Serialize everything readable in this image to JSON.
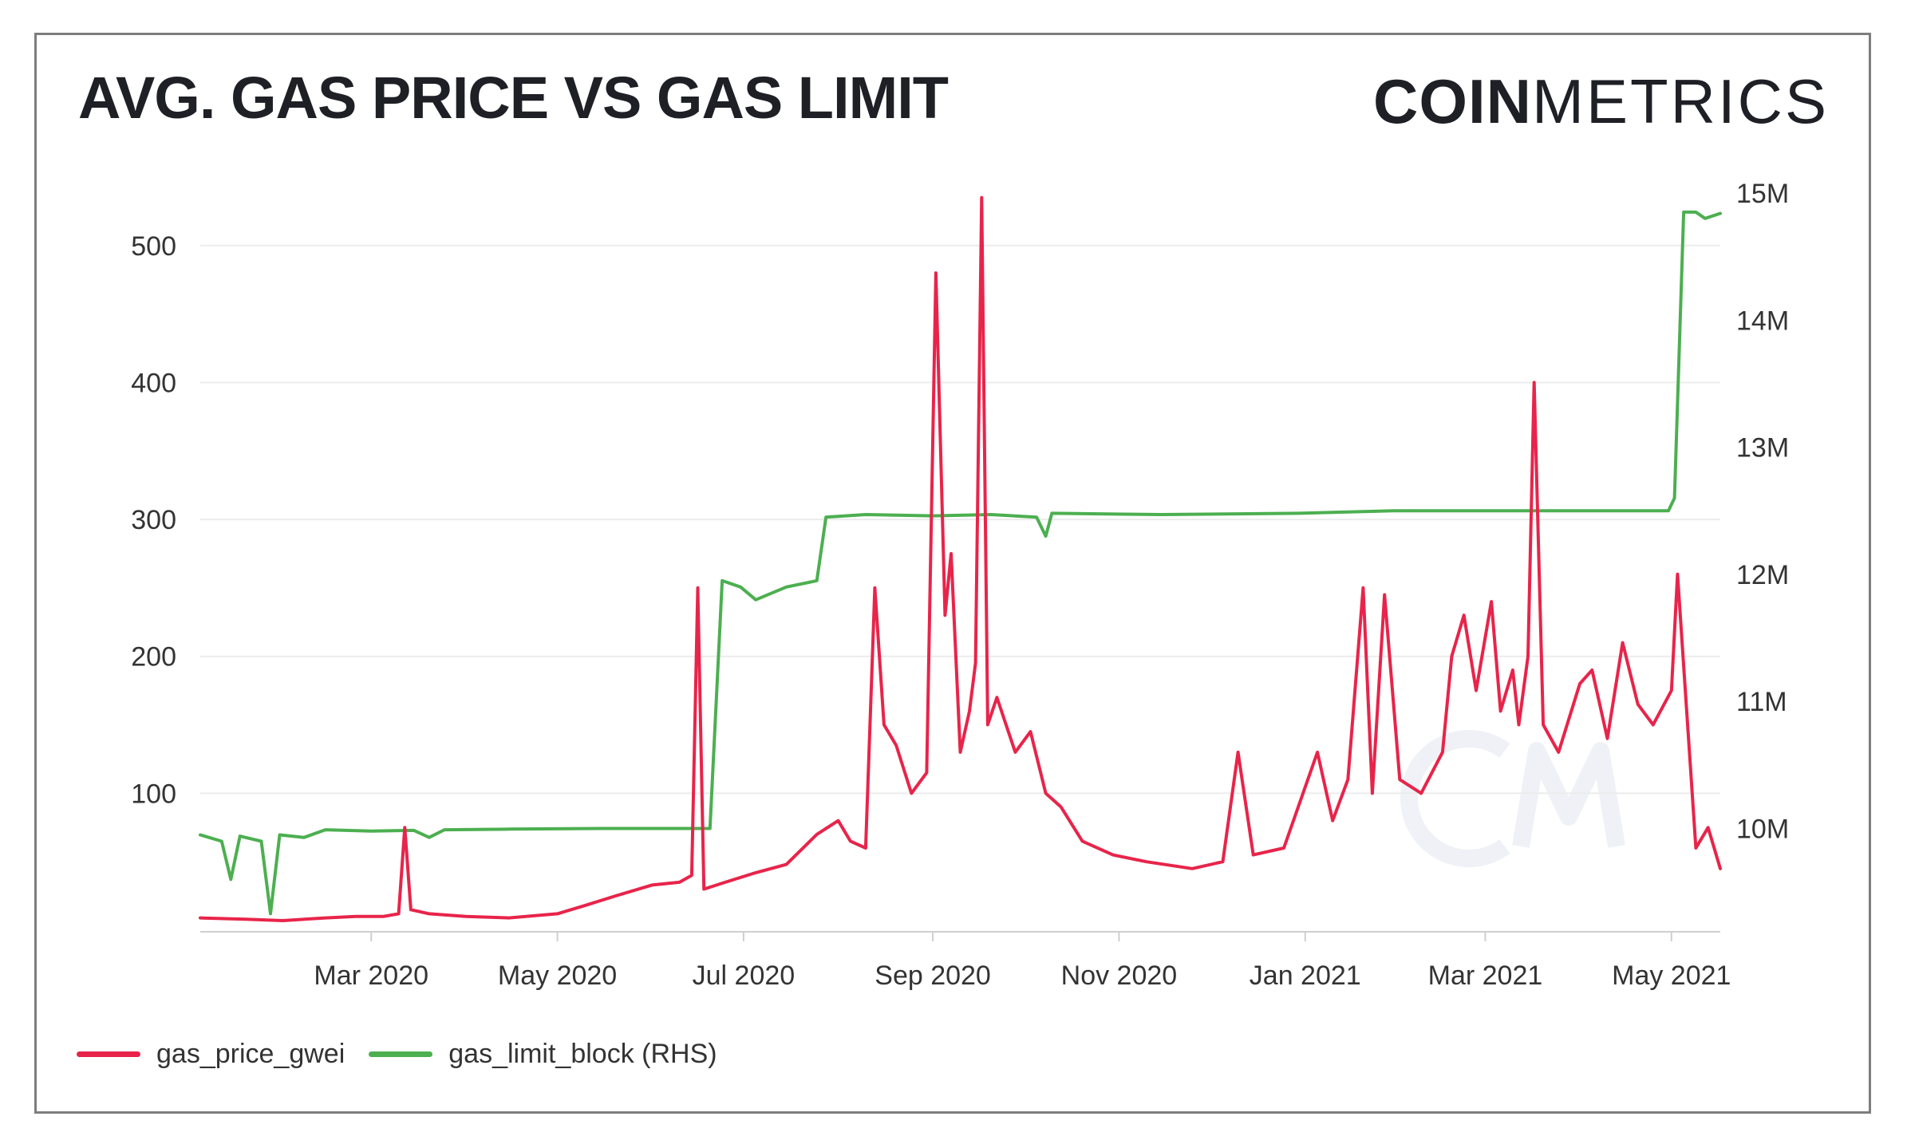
{
  "header": {
    "title": "AVG. GAS PRICE VS GAS LIMIT",
    "logo_bold": "COIN",
    "logo_thin": "METRICS"
  },
  "legend": {
    "items": [
      {
        "label": "gas_price_gwei",
        "color": "#e8244a"
      },
      {
        "label": "gas_limit_block (RHS)",
        "color": "#4caf50"
      }
    ]
  },
  "chart_data": {
    "type": "line",
    "title": "AVG. GAS PRICE VS GAS LIMIT",
    "xlabel": "",
    "ylabel": "",
    "grid": true,
    "legend_position": "bottom-left",
    "x_ticks": [
      "Mar 2020",
      "May 2020",
      "Jul 2020",
      "Sep 2020",
      "Nov 2020",
      "Jan 2021",
      "Mar 2021",
      "May 2021"
    ],
    "y_left_ticks": [
      "100",
      "200",
      "300",
      "400",
      "500"
    ],
    "y_right_ticks": [
      "10M",
      "11M",
      "12M",
      "13M",
      "14M",
      "15M"
    ],
    "y_left_range": [
      0,
      543
    ],
    "y_right_range": [
      9200000,
      15050000
    ],
    "series": [
      {
        "name": "gas_price_gwei",
        "axis": "left",
        "color": "#e8244a",
        "points": [
          [
            "2020-01-05",
            9
          ],
          [
            "2020-01-20",
            8
          ],
          [
            "2020-02-01",
            7
          ],
          [
            "2020-02-15",
            9
          ],
          [
            "2020-02-25",
            10
          ],
          [
            "2020-03-05",
            10
          ],
          [
            "2020-03-10",
            12
          ],
          [
            "2020-03-12",
            75
          ],
          [
            "2020-03-14",
            15
          ],
          [
            "2020-03-20",
            12
          ],
          [
            "2020-04-01",
            10
          ],
          [
            "2020-04-15",
            9
          ],
          [
            "2020-05-01",
            12
          ],
          [
            "2020-05-10",
            18
          ],
          [
            "2020-05-20",
            25
          ],
          [
            "2020-06-01",
            33
          ],
          [
            "2020-06-10",
            35
          ],
          [
            "2020-06-14",
            40
          ],
          [
            "2020-06-16",
            250
          ],
          [
            "2020-06-18",
            30
          ],
          [
            "2020-06-25",
            35
          ],
          [
            "2020-07-05",
            42
          ],
          [
            "2020-07-15",
            48
          ],
          [
            "2020-07-25",
            70
          ],
          [
            "2020-08-01",
            80
          ],
          [
            "2020-08-05",
            65
          ],
          [
            "2020-08-10",
            60
          ],
          [
            "2020-08-13",
            250
          ],
          [
            "2020-08-16",
            150
          ],
          [
            "2020-08-20",
            135
          ],
          [
            "2020-08-25",
            100
          ],
          [
            "2020-08-30",
            115
          ],
          [
            "2020-09-02",
            480
          ],
          [
            "2020-09-05",
            230
          ],
          [
            "2020-09-07",
            275
          ],
          [
            "2020-09-10",
            130
          ],
          [
            "2020-09-13",
            160
          ],
          [
            "2020-09-15",
            195
          ],
          [
            "2020-09-17",
            535
          ],
          [
            "2020-09-19",
            150
          ],
          [
            "2020-09-22",
            170
          ],
          [
            "2020-09-28",
            130
          ],
          [
            "2020-10-03",
            145
          ],
          [
            "2020-10-08",
            100
          ],
          [
            "2020-10-13",
            90
          ],
          [
            "2020-10-20",
            65
          ],
          [
            "2020-10-30",
            55
          ],
          [
            "2020-11-10",
            50
          ],
          [
            "2020-11-25",
            45
          ],
          [
            "2020-12-05",
            50
          ],
          [
            "2020-12-10",
            130
          ],
          [
            "2020-12-15",
            55
          ],
          [
            "2020-12-25",
            60
          ],
          [
            "2021-01-05",
            130
          ],
          [
            "2021-01-10",
            80
          ],
          [
            "2021-01-15",
            110
          ],
          [
            "2021-01-20",
            250
          ],
          [
            "2021-01-23",
            100
          ],
          [
            "2021-01-27",
            245
          ],
          [
            "2021-02-01",
            110
          ],
          [
            "2021-02-08",
            100
          ],
          [
            "2021-02-15",
            130
          ],
          [
            "2021-02-18",
            200
          ],
          [
            "2021-02-22",
            230
          ],
          [
            "2021-02-26",
            175
          ],
          [
            "2021-03-03",
            240
          ],
          [
            "2021-03-06",
            160
          ],
          [
            "2021-03-10",
            190
          ],
          [
            "2021-03-12",
            150
          ],
          [
            "2021-03-15",
            200
          ],
          [
            "2021-03-17",
            400
          ],
          [
            "2021-03-20",
            150
          ],
          [
            "2021-03-25",
            130
          ],
          [
            "2021-04-01",
            180
          ],
          [
            "2021-04-05",
            190
          ],
          [
            "2021-04-10",
            140
          ],
          [
            "2021-04-15",
            210
          ],
          [
            "2021-04-20",
            165
          ],
          [
            "2021-04-25",
            150
          ],
          [
            "2021-05-01",
            175
          ],
          [
            "2021-05-03",
            260
          ],
          [
            "2021-05-06",
            160
          ],
          [
            "2021-05-09",
            60
          ],
          [
            "2021-05-13",
            75
          ],
          [
            "2021-05-17",
            45
          ]
        ]
      },
      {
        "name": "gas_limit_block (RHS)",
        "axis": "right",
        "color": "#4caf50",
        "points": [
          [
            "2020-01-05",
            9950000
          ],
          [
            "2020-01-12",
            9900000
          ],
          [
            "2020-01-15",
            9600000
          ],
          [
            "2020-01-18",
            9940000
          ],
          [
            "2020-01-25",
            9900000
          ],
          [
            "2020-01-28",
            9330000
          ],
          [
            "2020-01-31",
            9950000
          ],
          [
            "2020-02-08",
            9930000
          ],
          [
            "2020-02-15",
            9990000
          ],
          [
            "2020-03-01",
            9980000
          ],
          [
            "2020-03-15",
            9985000
          ],
          [
            "2020-03-20",
            9930000
          ],
          [
            "2020-03-25",
            9990000
          ],
          [
            "2020-04-15",
            9995000
          ],
          [
            "2020-05-15",
            10000000
          ],
          [
            "2020-06-15",
            10000000
          ],
          [
            "2020-06-20",
            10000000
          ],
          [
            "2020-06-24",
            11950000
          ],
          [
            "2020-06-30",
            11900000
          ],
          [
            "2020-07-05",
            11800000
          ],
          [
            "2020-07-10",
            11850000
          ],
          [
            "2020-07-15",
            11900000
          ],
          [
            "2020-07-25",
            11950000
          ],
          [
            "2020-07-28",
            12450000
          ],
          [
            "2020-08-10",
            12470000
          ],
          [
            "2020-09-01",
            12460000
          ],
          [
            "2020-09-20",
            12470000
          ],
          [
            "2020-10-05",
            12450000
          ],
          [
            "2020-10-08",
            12300000
          ],
          [
            "2020-10-10",
            12480000
          ],
          [
            "2020-11-15",
            12470000
          ],
          [
            "2020-12-30",
            12480000
          ],
          [
            "2021-01-30",
            12500000
          ],
          [
            "2021-03-30",
            12500000
          ],
          [
            "2021-04-30",
            12500000
          ],
          [
            "2021-05-02",
            12600000
          ],
          [
            "2021-05-05",
            14850000
          ],
          [
            "2021-05-09",
            14850000
          ],
          [
            "2021-05-12",
            14800000
          ],
          [
            "2021-05-17",
            14840000
          ]
        ]
      }
    ]
  }
}
